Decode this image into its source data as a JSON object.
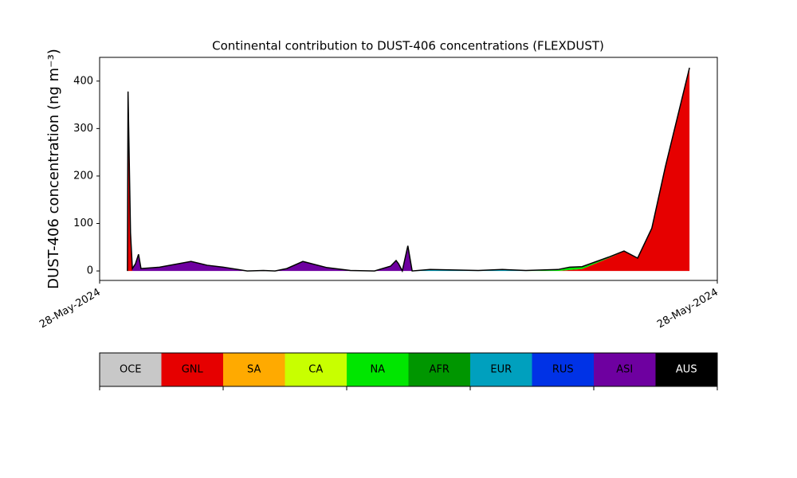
{
  "chart_data": {
    "type": "stacked_area",
    "title": "Continental contribution to DUST-406 concentrations (FLEXDUST)",
    "ylabel": "DUST-406 concentration (ng m⁻³)",
    "x": [
      4.5,
      4.6,
      5.0,
      5.3,
      5.8,
      6.3,
      6.7,
      9.7,
      14.8,
      17.4,
      20.0,
      23.9,
      26.5,
      28.4,
      30.3,
      32.9,
      36.8,
      40.6,
      44.5,
      47.1,
      48.0,
      48.4,
      49.0,
      49.9,
      50.6,
      53.5,
      61.3,
      65.2,
      69.0,
      74.2,
      76.1,
      78.1,
      82.6,
      84.9,
      87.1,
      89.4,
      91.6,
      95.5
    ],
    "series": [
      {
        "name": "GNL",
        "color": "#e60000",
        "values": [
          0,
          300,
          60,
          0,
          0,
          0,
          0,
          0,
          0,
          0,
          0,
          0,
          0,
          0,
          0,
          0,
          0,
          0,
          0,
          0,
          0,
          0,
          0,
          0,
          0,
          0,
          0,
          0,
          0,
          0,
          2,
          4,
          28,
          41,
          26,
          89,
          219,
          427
        ]
      },
      {
        "name": "NA",
        "color": "#00e600",
        "values": [
          0,
          0,
          0,
          0,
          0,
          0,
          0,
          0,
          0,
          0,
          0,
          0,
          0,
          0,
          0,
          0,
          0,
          0,
          0,
          0,
          0,
          0,
          0,
          0,
          0,
          0,
          0,
          0,
          0,
          2,
          5,
          4,
          1,
          0,
          0,
          0,
          0,
          0
        ]
      },
      {
        "name": "EUR",
        "color": "#00a0be",
        "values": [
          0,
          0,
          0,
          0,
          0,
          0,
          0,
          0,
          0,
          0,
          0,
          0,
          0,
          0,
          0,
          0,
          0,
          0,
          0,
          0,
          0,
          0,
          0,
          0,
          0,
          3,
          1,
          3,
          1,
          1,
          0,
          0,
          0,
          0,
          0,
          0,
          0,
          0
        ]
      },
      {
        "name": "ASI",
        "color": "#6e00a0",
        "values": [
          0,
          78,
          20,
          5,
          15,
          35,
          5,
          8,
          20,
          12,
          8,
          0,
          1,
          0,
          5,
          20,
          7,
          1,
          0,
          10,
          22,
          15,
          0,
          53,
          0,
          0,
          0,
          0,
          0,
          0,
          1,
          1,
          1,
          1,
          1,
          1,
          1,
          1
        ]
      },
      {
        "name": "AUS",
        "color": "#000000",
        "values": [
          0,
          0,
          0,
          0,
          0,
          0,
          0,
          0,
          0,
          0,
          0,
          0,
          0,
          0,
          0,
          0,
          0,
          0,
          0,
          0,
          0,
          0,
          0,
          0,
          0,
          0,
          0,
          0,
          0,
          0,
          0,
          0,
          0,
          0,
          0,
          0,
          0,
          0
        ]
      }
    ],
    "xlim": [
      0,
      100
    ],
    "xticks": [
      {
        "value": 0,
        "label": "28-May-2024"
      },
      {
        "value": 100,
        "label": "28-May-2024"
      }
    ],
    "ylim": [
      -20,
      450
    ],
    "yticks": [
      0,
      100,
      200,
      300,
      400
    ],
    "colorbar": {
      "labels": [
        "OCE",
        "GNL",
        "SA",
        "CA",
        "NA",
        "AFR",
        "EUR",
        "RUS",
        "ASI",
        "AUS"
      ],
      "colors": [
        "#c8c8c8",
        "#e60000",
        "#ffaa00",
        "#c8ff00",
        "#00e600",
        "#009600",
        "#00a0be",
        "#0032e6",
        "#6e00a0",
        "#000000"
      ]
    }
  }
}
